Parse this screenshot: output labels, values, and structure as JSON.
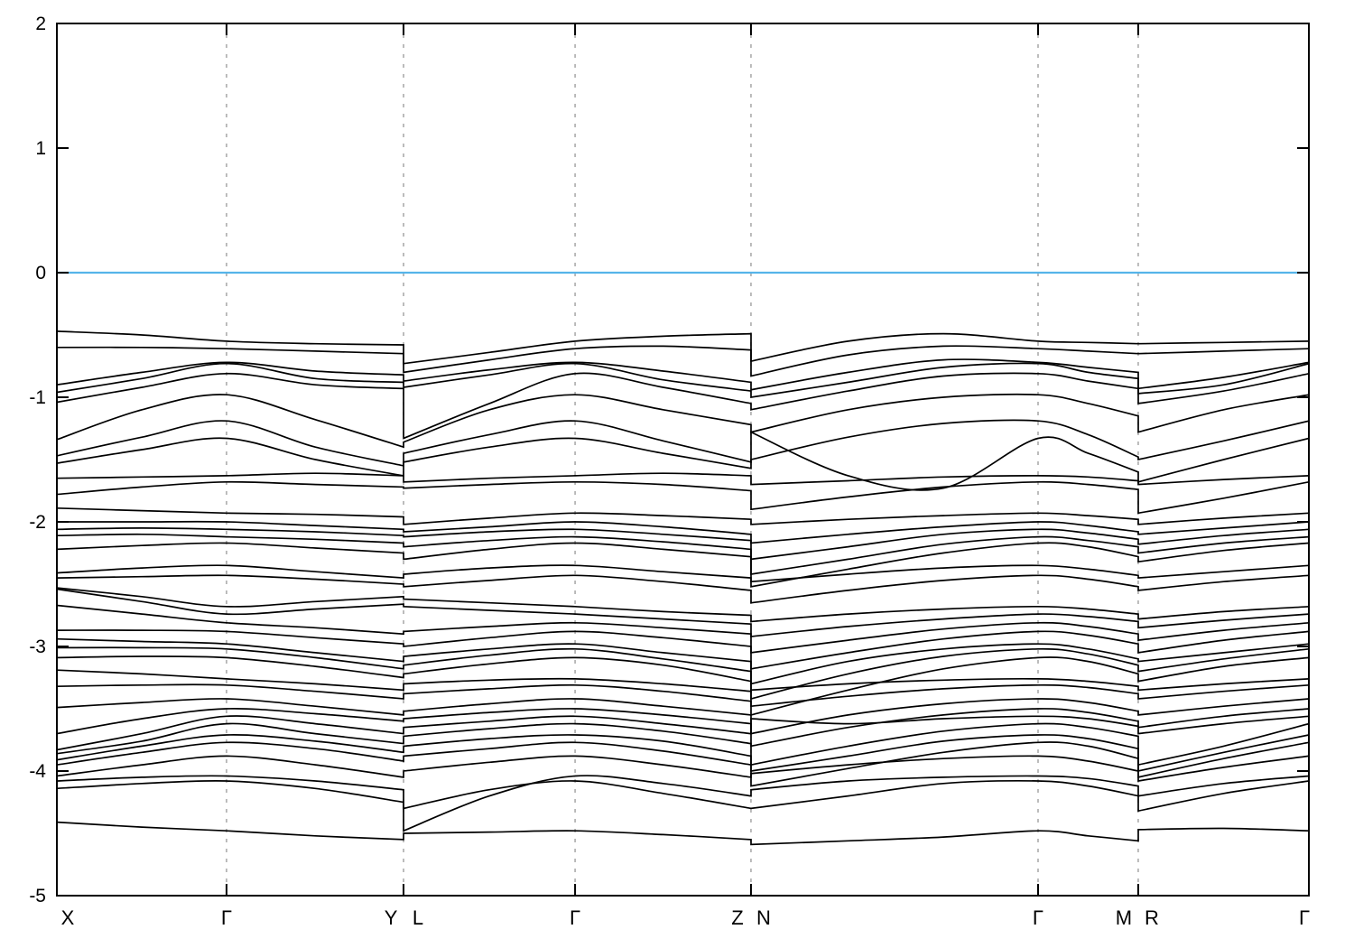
{
  "figure": {
    "background": "#ffffff",
    "description": "Electronic band structure plot along a high-symmetry k-point path with Fermi level at 0"
  },
  "chart_data": {
    "type": "line",
    "title": "",
    "xlabel": "",
    "ylabel": "",
    "ylim": [
      -5,
      2
    ],
    "grid": "vertical-dashed-at-kpoints",
    "legend": "none",
    "colors": {
      "band_line": "#000000",
      "fermi_line": "#56b4e9",
      "grid_line": "#a0a0a0",
      "axis": "#000000",
      "background": "#ffffff"
    },
    "fermi_level": 0,
    "yticks": {
      "values": [
        2,
        1,
        0,
        -1,
        -2,
        -3,
        -4,
        -5
      ],
      "labels": [
        "2",
        "1",
        "0",
        "-1",
        "-2",
        "-3",
        "-4",
        "-5"
      ]
    },
    "kpath_labels": [
      {
        "label": "X",
        "t": 0.0,
        "dx": 12
      },
      {
        "label": "Γ",
        "t": 0.1355,
        "dx": 0
      },
      {
        "label": "Y",
        "t": 0.2769,
        "dx": -14
      },
      {
        "label": "L",
        "t": 0.2769,
        "dx": 16
      },
      {
        "label": "Γ",
        "t": 0.4139,
        "dx": 0
      },
      {
        "label": "Z",
        "t": 0.5544,
        "dx": -15
      },
      {
        "label": "N",
        "t": 0.5544,
        "dx": 14
      },
      {
        "label": "Γ",
        "t": 0.7837,
        "dx": 0
      },
      {
        "label": "M",
        "t": 0.8637,
        "dx": -16
      },
      {
        "label": "R",
        "t": 0.8637,
        "dx": 15
      },
      {
        "label": "Γ",
        "t": 1.0,
        "dx": -5
      }
    ],
    "inner_tick_positions": [
      0.1355,
      0.2769,
      0.4139,
      0.5544,
      0.7837,
      0.8637
    ],
    "segment_boundaries": [
      0.2769,
      0.5544,
      0.8637
    ],
    "x_stations": [
      0.0,
      0.068,
      0.1355,
      0.2065,
      0.2769,
      0.2769,
      0.3455,
      0.4139,
      0.4842,
      0.5544,
      0.5544,
      0.632,
      0.708,
      0.7837,
      0.8237,
      0.8637,
      0.8637,
      0.932,
      1.0
    ],
    "station_names": [
      "X",
      "mid",
      "G",
      "mid",
      "Y",
      "L",
      "mid",
      "G",
      "mid",
      "Z",
      "N",
      "mid1",
      "mid2",
      "G",
      "mid",
      "M",
      "R",
      "mid",
      "G"
    ],
    "bands": [
      [
        -0.47,
        -0.5,
        -0.55,
        -0.57,
        -0.58,
        -0.73,
        -0.64,
        -0.55,
        -0.51,
        -0.49,
        -0.71,
        -0.55,
        -0.49,
        -0.55,
        -0.56,
        -0.57,
        -0.57,
        -0.56,
        -0.55
      ],
      [
        -0.6,
        -0.6,
        -0.61,
        -0.63,
        -0.65,
        -0.8,
        -0.7,
        -0.61,
        -0.59,
        -0.62,
        -0.83,
        -0.66,
        -0.59,
        -0.61,
        -0.63,
        -0.65,
        -0.65,
        -0.63,
        -0.61
      ],
      [
        -0.9,
        -0.8,
        -0.72,
        -0.79,
        -0.82,
        -0.87,
        -0.78,
        -0.72,
        -0.79,
        -0.88,
        -0.94,
        -0.8,
        -0.7,
        -0.72,
        -0.76,
        -0.8,
        -0.93,
        -0.84,
        -0.72
      ],
      [
        -0.96,
        -0.85,
        -0.73,
        -0.85,
        -0.88,
        -0.92,
        -0.82,
        -0.73,
        -0.86,
        -0.95,
        -1.0,
        -0.88,
        -0.76,
        -0.73,
        -0.8,
        -0.85,
        -0.97,
        -0.9,
        -0.73
      ],
      [
        -1.04,
        -0.92,
        -0.81,
        -0.9,
        -0.93,
        -1.33,
        -1.05,
        -0.81,
        -0.92,
        -1.05,
        -1.1,
        -0.95,
        -0.83,
        -0.81,
        -0.87,
        -0.93,
        -1.05,
        -0.95,
        -0.81
      ],
      [
        -1.34,
        -1.1,
        -0.98,
        -1.18,
        -1.4,
        -1.36,
        -1.1,
        -0.98,
        -1.1,
        -1.22,
        -1.28,
        -1.1,
        -1.0,
        -0.98,
        -1.05,
        -1.15,
        -1.28,
        -1.1,
        -0.98
      ],
      [
        -1.47,
        -1.32,
        -1.19,
        -1.4,
        -1.55,
        -1.45,
        -1.3,
        -1.19,
        -1.35,
        -1.52,
        -1.5,
        -1.32,
        -1.21,
        -1.19,
        -1.3,
        -1.48,
        -1.5,
        -1.35,
        -1.19
      ],
      [
        -1.53,
        -1.42,
        -1.33,
        -1.5,
        -1.63,
        -1.52,
        -1.4,
        -1.33,
        -1.45,
        -1.57,
        -1.28,
        -1.63,
        -1.73,
        -1.33,
        -1.45,
        -1.6,
        -1.68,
        -1.5,
        -1.33
      ],
      [
        -1.65,
        -1.64,
        -1.63,
        -1.61,
        -1.63,
        -1.68,
        -1.65,
        -1.63,
        -1.61,
        -1.63,
        -1.7,
        -1.67,
        -1.64,
        -1.63,
        -1.64,
        -1.67,
        -1.7,
        -1.66,
        -1.63
      ],
      [
        -1.78,
        -1.72,
        -1.68,
        -1.7,
        -1.72,
        -1.73,
        -1.7,
        -1.68,
        -1.7,
        -1.75,
        -1.9,
        -1.8,
        -1.72,
        -1.68,
        -1.7,
        -1.74,
        -1.93,
        -1.81,
        -1.68
      ],
      [
        -1.89,
        -1.91,
        -1.93,
        -1.94,
        -1.96,
        -2.02,
        -1.97,
        -1.93,
        -1.95,
        -1.98,
        -2.02,
        -1.98,
        -1.95,
        -1.93,
        -1.95,
        -1.98,
        -2.02,
        -1.97,
        -1.93
      ],
      [
        -2.0,
        -2.0,
        -2.0,
        -2.03,
        -2.06,
        -2.08,
        -2.04,
        -2.0,
        -2.04,
        -2.1,
        -2.17,
        -2.1,
        -2.04,
        -2.0,
        -2.03,
        -2.08,
        -2.1,
        -2.05,
        -2.0
      ],
      [
        -2.06,
        -2.05,
        -2.06,
        -2.08,
        -2.11,
        -2.12,
        -2.08,
        -2.06,
        -2.1,
        -2.15,
        -2.3,
        -2.2,
        -2.1,
        -2.06,
        -2.09,
        -2.14,
        -2.18,
        -2.11,
        -2.06
      ],
      [
        -2.11,
        -2.1,
        -2.12,
        -2.14,
        -2.17,
        -2.2,
        -2.15,
        -2.12,
        -2.16,
        -2.22,
        -2.42,
        -2.3,
        -2.18,
        -2.12,
        -2.15,
        -2.2,
        -2.25,
        -2.17,
        -2.12
      ],
      [
        -2.22,
        -2.19,
        -2.17,
        -2.21,
        -2.25,
        -2.3,
        -2.22,
        -2.17,
        -2.22,
        -2.28,
        -2.52,
        -2.38,
        -2.25,
        -2.17,
        -2.2,
        -2.28,
        -2.32,
        -2.23,
        -2.17
      ],
      [
        -2.41,
        -2.37,
        -2.35,
        -2.4,
        -2.45,
        -2.42,
        -2.37,
        -2.35,
        -2.4,
        -2.45,
        -2.48,
        -2.42,
        -2.37,
        -2.35,
        -2.38,
        -2.43,
        -2.45,
        -2.4,
        -2.35
      ],
      [
        -2.45,
        -2.44,
        -2.43,
        -2.46,
        -2.5,
        -2.52,
        -2.47,
        -2.43,
        -2.48,
        -2.55,
        -2.65,
        -2.55,
        -2.47,
        -2.43,
        -2.46,
        -2.52,
        -2.55,
        -2.48,
        -2.43
      ],
      [
        -2.53,
        -2.6,
        -2.68,
        -2.64,
        -2.6,
        -2.62,
        -2.65,
        -2.68,
        -2.72,
        -2.75,
        -2.8,
        -2.74,
        -2.7,
        -2.68,
        -2.7,
        -2.74,
        -2.78,
        -2.72,
        -2.68
      ],
      [
        -2.54,
        -2.64,
        -2.74,
        -2.7,
        -2.66,
        -2.68,
        -2.71,
        -2.74,
        -2.78,
        -2.82,
        -2.92,
        -2.84,
        -2.78,
        -2.74,
        -2.76,
        -2.8,
        -2.85,
        -2.79,
        -2.74
      ],
      [
        -2.67,
        -2.74,
        -2.81,
        -2.85,
        -2.9,
        -2.88,
        -2.84,
        -2.81,
        -2.85,
        -2.9,
        -3.05,
        -2.95,
        -2.86,
        -2.81,
        -2.84,
        -2.9,
        -2.95,
        -2.87,
        -2.81
      ],
      [
        -2.87,
        -2.87,
        -2.88,
        -2.93,
        -2.98,
        -3.0,
        -2.93,
        -2.88,
        -2.93,
        -3.0,
        -3.18,
        -3.05,
        -2.94,
        -2.88,
        -2.91,
        -2.98,
        -3.05,
        -2.95,
        -2.88
      ],
      [
        -2.94,
        -2.96,
        -2.98,
        -3.05,
        -3.12,
        -3.08,
        -3.02,
        -2.98,
        -3.05,
        -3.12,
        -3.3,
        -3.12,
        -3.02,
        -2.98,
        -3.02,
        -3.1,
        -3.12,
        -3.05,
        -2.98
      ],
      [
        -3.01,
        -3.01,
        -3.02,
        -3.09,
        -3.18,
        -3.15,
        -3.07,
        -3.02,
        -3.1,
        -3.2,
        -3.42,
        -3.22,
        -3.08,
        -3.02,
        -3.06,
        -3.15,
        -3.2,
        -3.1,
        -3.02
      ],
      [
        -3.09,
        -3.08,
        -3.09,
        -3.16,
        -3.25,
        -3.22,
        -3.14,
        -3.09,
        -3.15,
        -3.28,
        -3.55,
        -3.35,
        -3.18,
        -3.09,
        -3.12,
        -3.22,
        -3.28,
        -3.16,
        -3.09
      ],
      [
        -3.19,
        -3.22,
        -3.26,
        -3.3,
        -3.35,
        -3.3,
        -3.27,
        -3.26,
        -3.3,
        -3.36,
        -3.35,
        -3.3,
        -3.27,
        -3.26,
        -3.28,
        -3.32,
        -3.35,
        -3.3,
        -3.26
      ],
      [
        -3.32,
        -3.31,
        -3.31,
        -3.36,
        -3.42,
        -3.38,
        -3.34,
        -3.31,
        -3.36,
        -3.44,
        -3.48,
        -3.4,
        -3.34,
        -3.31,
        -3.33,
        -3.38,
        -3.42,
        -3.36,
        -3.31
      ],
      [
        -3.49,
        -3.45,
        -3.42,
        -3.48,
        -3.55,
        -3.52,
        -3.46,
        -3.42,
        -3.48,
        -3.55,
        -3.7,
        -3.55,
        -3.46,
        -3.42,
        -3.45,
        -3.52,
        -3.55,
        -3.48,
        -3.42
      ],
      [
        -3.7,
        -3.58,
        -3.5,
        -3.54,
        -3.6,
        -3.58,
        -3.53,
        -3.5,
        -3.55,
        -3.62,
        -3.8,
        -3.65,
        -3.55,
        -3.5,
        -3.53,
        -3.6,
        -3.65,
        -3.56,
        -3.5
      ],
      [
        -3.83,
        -3.7,
        -3.56,
        -3.62,
        -3.7,
        -3.65,
        -3.6,
        -3.56,
        -3.62,
        -3.7,
        -3.58,
        -3.62,
        -3.58,
        -3.56,
        -3.58,
        -3.64,
        -3.7,
        -3.62,
        -3.56
      ],
      [
        -3.86,
        -3.76,
        -3.62,
        -3.7,
        -3.78,
        -3.72,
        -3.66,
        -3.62,
        -3.68,
        -3.78,
        -3.95,
        -3.8,
        -3.68,
        -3.62,
        -3.65,
        -3.72,
        -3.95,
        -3.8,
        -3.62
      ],
      [
        -3.91,
        -3.8,
        -3.71,
        -3.76,
        -3.85,
        -3.8,
        -3.74,
        -3.71,
        -3.76,
        -3.88,
        -4.0,
        -3.88,
        -3.76,
        -3.71,
        -3.74,
        -3.82,
        -4.0,
        -3.85,
        -3.71
      ],
      [
        -3.95,
        -3.85,
        -3.77,
        -3.82,
        -3.92,
        -3.88,
        -3.82,
        -3.77,
        -3.84,
        -3.95,
        -4.12,
        -3.98,
        -3.85,
        -3.77,
        -3.8,
        -3.9,
        -4.05,
        -3.9,
        -3.77
      ],
      [
        -4.04,
        -3.95,
        -3.88,
        -3.95,
        -4.05,
        -4.0,
        -3.93,
        -3.88,
        -3.95,
        -4.05,
        -4.02,
        -3.95,
        -3.9,
        -3.88,
        -3.92,
        -4.0,
        -4.08,
        -3.97,
        -3.88
      ],
      [
        -4.08,
        -4.05,
        -4.04,
        -4.08,
        -4.15,
        -4.48,
        -4.2,
        -4.04,
        -4.1,
        -4.2,
        -4.15,
        -4.08,
        -4.05,
        -4.04,
        -4.06,
        -4.12,
        -4.2,
        -4.1,
        -4.04
      ],
      [
        -4.14,
        -4.1,
        -4.08,
        -4.14,
        -4.25,
        -4.3,
        -4.15,
        -4.08,
        -4.18,
        -4.3,
        -4.3,
        -4.2,
        -4.1,
        -4.08,
        -4.12,
        -4.2,
        -4.32,
        -4.18,
        -4.08
      ],
      [
        -4.41,
        -4.45,
        -4.48,
        -4.52,
        -4.55,
        -4.5,
        -4.49,
        -4.48,
        -4.51,
        -4.55,
        -4.59,
        -4.56,
        -4.53,
        -4.48,
        -4.52,
        -4.56,
        -4.47,
        -4.46,
        -4.48
      ]
    ]
  }
}
